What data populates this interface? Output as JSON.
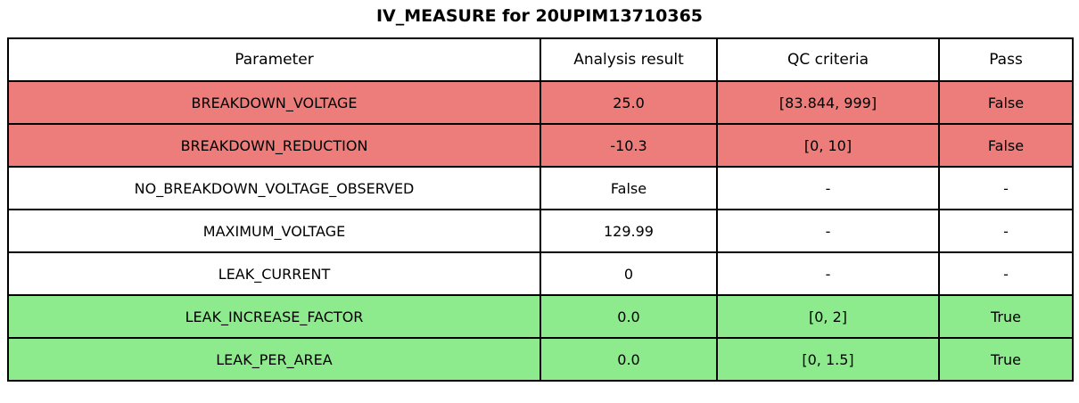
{
  "title": "IV_MEASURE for 20UPIM13710365",
  "table": {
    "headers": [
      "Parameter",
      "Analysis result",
      "QC criteria",
      "Pass"
    ],
    "rows": [
      {
        "status": "fail",
        "cells": [
          "BREAKDOWN_VOLTAGE",
          "25.0",
          "[83.844, 999]",
          "False"
        ]
      },
      {
        "status": "fail",
        "cells": [
          "BREAKDOWN_REDUCTION",
          "-10.3",
          "[0, 10]",
          "False"
        ]
      },
      {
        "status": "neutral",
        "cells": [
          "NO_BREAKDOWN_VOLTAGE_OBSERVED",
          "False",
          "-",
          "-"
        ]
      },
      {
        "status": "neutral",
        "cells": [
          "MAXIMUM_VOLTAGE",
          "129.99",
          "-",
          "-"
        ]
      },
      {
        "status": "neutral",
        "cells": [
          "LEAK_CURRENT",
          "0",
          "-",
          "-"
        ]
      },
      {
        "status": "pass",
        "cells": [
          "LEAK_INCREASE_FACTOR",
          "0.0",
          "[0, 2]",
          "True"
        ]
      },
      {
        "status": "pass",
        "cells": [
          "LEAK_PER_AREA",
          "0.0",
          "[0, 1.5]",
          "True"
        ]
      }
    ]
  },
  "colors": {
    "fail_row_bg": "#ED7D7B",
    "pass_row_bg": "#8DEB8D",
    "neutral_row_bg": "#FFFFFF",
    "border": "#000000",
    "text": "#000000"
  },
  "chart_data": {
    "type": "table",
    "title": "IV_MEASURE for 20UPIM13710365",
    "columns": [
      "Parameter",
      "Analysis result",
      "QC criteria",
      "Pass"
    ],
    "rows": [
      [
        "BREAKDOWN_VOLTAGE",
        "25.0",
        "[83.844, 999]",
        "False"
      ],
      [
        "BREAKDOWN_REDUCTION",
        "-10.3",
        "[0, 10]",
        "False"
      ],
      [
        "NO_BREAKDOWN_VOLTAGE_OBSERVED",
        "False",
        "-",
        "-"
      ],
      [
        "MAXIMUM_VOLTAGE",
        "129.99",
        "-",
        "-"
      ],
      [
        "LEAK_CURRENT",
        "0",
        "-",
        "-"
      ],
      [
        "LEAK_INCREASE_FACTOR",
        "0.0",
        "[0, 2]",
        "True"
      ],
      [
        "LEAK_PER_AREA",
        "0.0",
        "[0, 1.5]",
        "True"
      ]
    ],
    "row_status": [
      "fail",
      "fail",
      "neutral",
      "neutral",
      "neutral",
      "pass",
      "pass"
    ],
    "row_status_colors": {
      "fail": "#ED7D7B",
      "pass": "#8DEB8D",
      "neutral": "#FFFFFF"
    },
    "legend_position": "none",
    "grid": "full-borders"
  }
}
